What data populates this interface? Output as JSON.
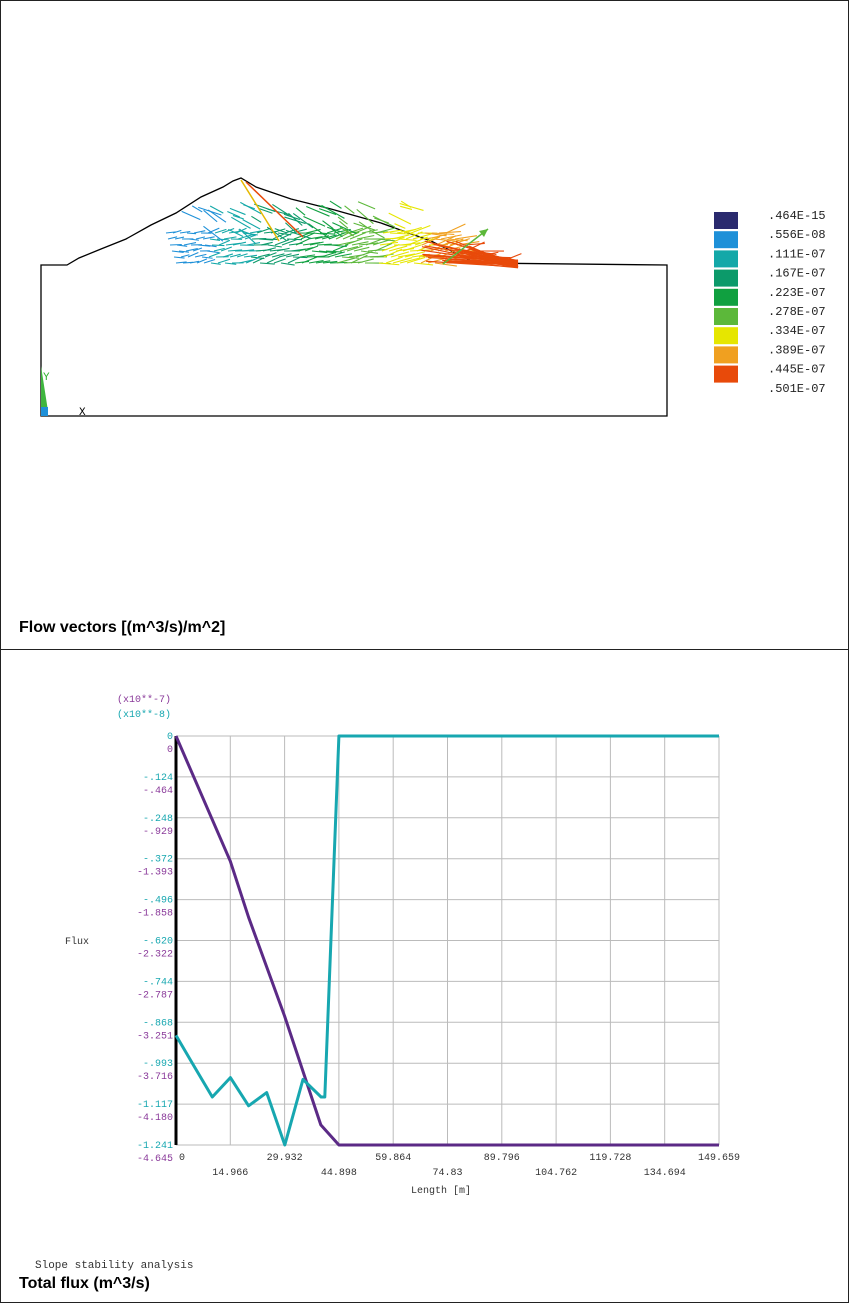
{
  "panels": [
    {
      "caption": "Flow vectors [(m^3/s)/m^2]",
      "axis_triad": {
        "x_label": "X",
        "y_label": "Y"
      },
      "legend": {
        "entries": [
          {
            "label": ".464E-15",
            "color": "#2a2a6e"
          },
          {
            "label": ".556E-08",
            "color": "#1e90d8"
          },
          {
            "label": ".111E-07",
            "color": "#13a8a8"
          },
          {
            "label": ".167E-07",
            "color": "#0c9a6a"
          },
          {
            "label": ".223E-07",
            "color": "#10a040"
          },
          {
            "label": ".278E-07",
            "color": "#5cb83a"
          },
          {
            "label": ".334E-07",
            "color": "#e6e600"
          },
          {
            "label": ".389E-07",
            "color": "#f0a020"
          },
          {
            "label": ".445E-07",
            "color": "#e84a0a"
          },
          {
            "label": ".501E-07",
            "color": ""
          }
        ]
      }
    },
    {
      "caption": "Total flux (m^3/s)",
      "subtitle": "Slope stability analysis"
    }
  ],
  "chart_data": {
    "type": "line",
    "title": "Total flux (m^3/s)",
    "xlabel": "Length [m]",
    "ylabel": "Flux",
    "xlim": [
      0,
      149.659
    ],
    "x_ticks_upper": [
      "0",
      "29.932",
      "59.864",
      "89.796",
      "119.728",
      "149.659"
    ],
    "x_ticks_lower": [
      "14.966",
      "44.898",
      "74.83",
      "104.762",
      "134.694"
    ],
    "y_multiplier_1": "(x10**-7)",
    "y_multiplier_2": "(x10**-8)",
    "y_ticks_1": [
      "0",
      "-.124",
      "-.248",
      "-.372",
      "-.496",
      "-.620",
      "-.744",
      "-.868",
      "-.993",
      "-1.117",
      "-1.241"
    ],
    "y_ticks_2": [
      "0",
      "-.464",
      "-.929",
      "-1.393",
      "-1.858",
      "-2.322",
      "-2.787",
      "-3.251",
      "-3.716",
      "-4.180",
      "-4.645"
    ],
    "grid": true,
    "colors": {
      "series_1": "#5b2a86",
      "series_2": "#17a7b0",
      "axis_1_labels": "#8a3a9a",
      "axis_2_labels": "#17a7b0"
    },
    "series": [
      {
        "axis": "1",
        "x": [
          0,
          14.966,
          20,
          29.932,
          39.9,
          44.898,
          149.659
        ],
        "y": [
          0,
          -0.38,
          -0.55,
          -0.85,
          -1.18,
          -1.241,
          -1.241
        ]
      },
      {
        "axis": "2",
        "x": [
          0,
          5,
          10,
          15,
          20,
          25,
          30,
          35,
          40,
          41,
          44.898,
          149.659
        ],
        "y": [
          -3.4,
          -3.75,
          -4.1,
          -3.88,
          -4.2,
          -4.05,
          -4.645,
          -3.9,
          -4.1,
          -4.1,
          0,
          0
        ]
      }
    ]
  }
}
